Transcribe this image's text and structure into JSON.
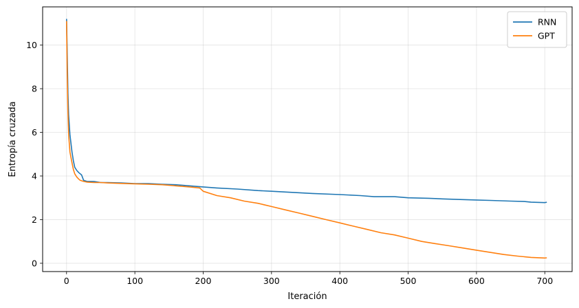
{
  "chart_data": {
    "type": "line",
    "title": "",
    "xlabel": "Iteración",
    "ylabel": "Entropía cruzada",
    "xlim": [
      -35,
      740
    ],
    "ylim": [
      -0.38,
      11.75
    ],
    "xticks": [
      0,
      100,
      200,
      300,
      400,
      500,
      600,
      700
    ],
    "yticks": [
      0,
      2,
      4,
      6,
      8,
      10
    ],
    "grid": true,
    "legend_position": "top-right",
    "series": [
      {
        "name": "RNN",
        "color": "#1f77b4",
        "x": [
          0,
          1,
          2,
          3,
          5,
          8,
          10,
          12,
          15,
          18,
          20,
          22,
          25,
          30,
          40,
          50,
          60,
          80,
          100,
          120,
          140,
          160,
          180,
          200,
          220,
          250,
          280,
          300,
          330,
          360,
          400,
          430,
          450,
          480,
          500,
          530,
          550,
          580,
          600,
          620,
          650,
          670,
          680,
          700,
          703
        ],
        "y": [
          11.2,
          9.5,
          7.8,
          6.8,
          5.9,
          5.1,
          4.7,
          4.4,
          4.25,
          4.15,
          4.1,
          4.05,
          3.8,
          3.75,
          3.75,
          3.7,
          3.7,
          3.68,
          3.65,
          3.65,
          3.62,
          3.6,
          3.55,
          3.5,
          3.45,
          3.4,
          3.33,
          3.3,
          3.25,
          3.2,
          3.15,
          3.1,
          3.05,
          3.05,
          3.0,
          2.98,
          2.95,
          2.92,
          2.9,
          2.88,
          2.85,
          2.83,
          2.8,
          2.78,
          2.8
        ]
      },
      {
        "name": "GPT",
        "color": "#ff7f0e",
        "x": [
          0,
          1,
          2,
          3,
          5,
          8,
          10,
          12,
          15,
          18,
          20,
          25,
          30,
          40,
          50,
          60,
          80,
          100,
          120,
          140,
          160,
          180,
          195,
          200,
          220,
          240,
          260,
          280,
          300,
          320,
          340,
          360,
          380,
          400,
          420,
          440,
          460,
          480,
          500,
          520,
          540,
          560,
          580,
          600,
          620,
          640,
          660,
          680,
          700,
          703
        ],
        "y": [
          11.1,
          8.6,
          6.9,
          5.9,
          5.1,
          4.6,
          4.3,
          4.1,
          3.95,
          3.85,
          3.8,
          3.75,
          3.72,
          3.7,
          3.7,
          3.68,
          3.66,
          3.64,
          3.62,
          3.6,
          3.55,
          3.5,
          3.45,
          3.3,
          3.1,
          3.0,
          2.85,
          2.75,
          2.6,
          2.45,
          2.3,
          2.15,
          2.0,
          1.85,
          1.7,
          1.55,
          1.4,
          1.3,
          1.15,
          1.0,
          0.9,
          0.8,
          0.7,
          0.6,
          0.5,
          0.4,
          0.33,
          0.27,
          0.24,
          0.25
        ]
      }
    ]
  }
}
